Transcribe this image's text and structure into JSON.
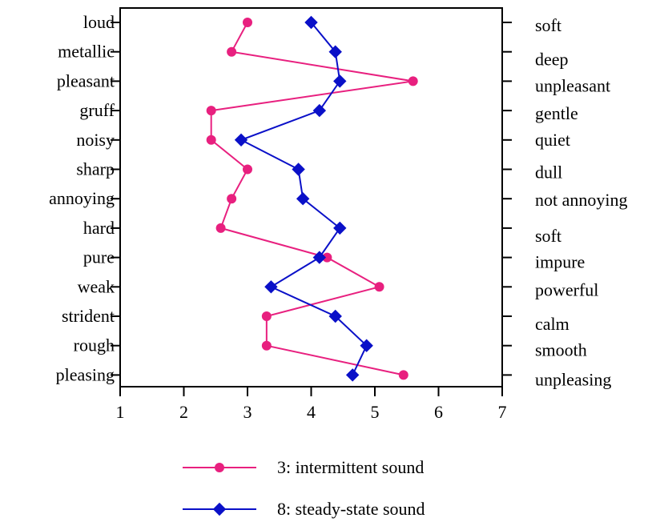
{
  "chart_data": {
    "type": "line",
    "orientation": "horizontal-profile",
    "title": "",
    "xlabel": "",
    "ylabel": "",
    "xlim": [
      1,
      7
    ],
    "x_ticks": [
      "1",
      "2",
      "3",
      "4",
      "5",
      "6",
      "7"
    ],
    "categories_left": [
      "loud",
      "metallic",
      "pleasant",
      "gruff",
      "noisy",
      "sharp",
      "annoying",
      "hard",
      "pure",
      "weak",
      "strident",
      "rough",
      "pleasing"
    ],
    "categories_right": [
      "soft",
      "deep",
      "unpleasant",
      "gentle",
      "quiet",
      "dull",
      "not annoying",
      "soft",
      "impure",
      "powerful",
      "calm",
      "smooth",
      "unpleasing"
    ],
    "grid": false,
    "legend_position": "bottom-center",
    "series": [
      {
        "name": "3: intermittent sound",
        "color": "#e8207f",
        "marker": "circle",
        "values": [
          3.0,
          2.75,
          5.6,
          2.43,
          2.43,
          3.0,
          2.75,
          2.58,
          4.25,
          5.07,
          3.3,
          3.3,
          5.45
        ]
      },
      {
        "name": "8: steady-state sound",
        "color": "#0a10c8",
        "marker": "diamond",
        "values": [
          4.0,
          4.38,
          4.45,
          4.13,
          2.9,
          3.8,
          3.87,
          4.45,
          4.13,
          3.37,
          4.38,
          4.87,
          4.65
        ]
      }
    ]
  }
}
